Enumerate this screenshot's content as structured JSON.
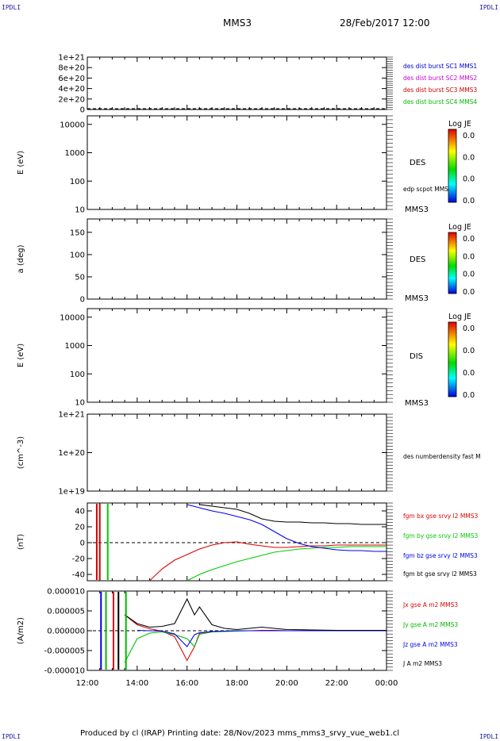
{
  "corners": {
    "tl": "IPDLI",
    "tr": "IPDLI",
    "bl": "IPDLI",
    "br": "IPDLI"
  },
  "header": {
    "title": "MMS3",
    "datetime": "28/Feb/2017 12:00"
  },
  "footer": {
    "text": "Produced by cl (IRAP)   Printing date: 28/Nov/2023   mms_mms3_srvy_vue_web1.cl"
  },
  "chart_data": [
    {
      "type": "line",
      "ytick_labels": [
        "0",
        "2e+20",
        "4e+20",
        "6e+20",
        "8e+20",
        "1e+21"
      ],
      "ylim": [
        0,
        1e+21
      ],
      "series": [
        {
          "name": "des dist burst SC1 MMS1",
          "color": "#0000cc"
        },
        {
          "name": "des dist burst SC2 MMS2",
          "color": "#cc00cc"
        },
        {
          "name": "des dist burst SC3 MMS3",
          "color": "#cc0000"
        },
        {
          "name": "des dist burst SC4 MMS4",
          "color": "#00bb00"
        }
      ]
    },
    {
      "type": "heatmap",
      "ylabel": "E (eV)",
      "yscale": "log",
      "ylim": [
        10,
        20000
      ],
      "ytick_labels": [
        "10",
        "100",
        "1000",
        "10000"
      ],
      "labels": [
        "DES",
        "edp scpot MMS3",
        "MMS3"
      ],
      "colorbar": {
        "title": "Log JE",
        "ticks": [
          "0.0",
          "0.0",
          "0.0",
          "0.0"
        ]
      }
    },
    {
      "type": "heatmap",
      "ylabel": "a (deg)",
      "ylim": [
        0,
        180
      ],
      "ytick_labels": [
        "0",
        "50",
        "100",
        "150"
      ],
      "labels": [
        "DES",
        "MMS3"
      ],
      "colorbar": {
        "title": "Log JE",
        "ticks": [
          "0.0",
          "0.0",
          "0.0",
          "0.0"
        ]
      }
    },
    {
      "type": "heatmap",
      "ylabel": "E (eV)",
      "yscale": "log",
      "ylim": [
        10,
        20000
      ],
      "ytick_labels": [
        "10",
        "100",
        "1000",
        "10000"
      ],
      "labels": [
        "DIS",
        "MMS3"
      ],
      "colorbar": {
        "title": "Log JE",
        "ticks": [
          "0.0",
          "0.0",
          "0.0",
          "0.0"
        ]
      }
    },
    {
      "type": "line",
      "ylabel": "(cm^-3)",
      "yscale": "log",
      "ylim": [
        1e+19,
        1e+21
      ],
      "ytick_labels": [
        "1e+19",
        "1e+20",
        "1e+21"
      ],
      "series": [
        {
          "name": "des numberdensity fast M",
          "color": "#000000"
        }
      ]
    },
    {
      "type": "line",
      "ylabel": "(nT)",
      "ylim": [
        -48,
        50
      ],
      "ytick_labels": [
        "-40",
        "-20",
        "0",
        "20",
        "40"
      ],
      "x": [
        14.5,
        15,
        15.5,
        16,
        16.5,
        17,
        17.5,
        18,
        18.5,
        19,
        19.5,
        20,
        20.5,
        21,
        21.5,
        22,
        22.5,
        23,
        23.5,
        24
      ],
      "series": [
        {
          "name": "fgm bx gse srvy l2 MMS3",
          "color": "#dd0000",
          "values": [
            -48,
            -33,
            -22,
            -15,
            -8,
            -3,
            0,
            1,
            -2,
            -4,
            -6,
            -6,
            -5,
            -4,
            -4,
            -3,
            -3,
            -3,
            -3,
            -3
          ]
        },
        {
          "name": "fgm by gse srvy l2 MMS3",
          "color": "#00cc00",
          "values": [
            null,
            null,
            null,
            -48,
            -40,
            -34,
            -29,
            -24,
            -20,
            -16,
            -12,
            -10,
            -8,
            -7,
            -6,
            -6,
            -5,
            -5,
            -5,
            -5
          ]
        },
        {
          "name": "fgm bz gse srvy l2 MMS3",
          "color": "#0000ee",
          "values": [
            null,
            null,
            null,
            48,
            44,
            40,
            37,
            33,
            29,
            23,
            14,
            5,
            -1,
            -5,
            -7,
            -9,
            -10,
            -10,
            -11,
            -11
          ]
        },
        {
          "name": "fgm bt gse srvy l2 MMS3",
          "color": "#000000",
          "values": [
            null,
            null,
            null,
            null,
            48,
            46,
            44,
            42,
            37,
            30,
            27,
            26,
            26,
            25,
            25,
            24,
            24,
            23,
            23,
            23
          ]
        }
      ]
    },
    {
      "type": "line",
      "ylabel": "(A/m2)",
      "ylim": [
        -1e-05,
        1e-05
      ],
      "ytick_labels": [
        "-0.000010",
        "-0.000005",
        "0.000000",
        "0.000005",
        "0.000010"
      ],
      "x": [
        12,
        12.5,
        13,
        13.5,
        14,
        14.5,
        15,
        15.5,
        16,
        16.3,
        16.5,
        17,
        17.5,
        18,
        18.5,
        19,
        19.5,
        20,
        21,
        22,
        23,
        24
      ],
      "series": [
        {
          "name": "Jx gse A m2 MMS3",
          "color": "#dd0000",
          "values": [
            null,
            null,
            null,
            4e-06,
            1.5e-06,
            5e-07,
            -1e-07,
            -1.5e-06,
            -7.5e-06,
            -4e-06,
            -6e-07,
            -2e-07,
            -1e-07,
            0,
            0,
            1e-07,
            1e-07,
            0,
            0,
            0,
            0,
            0
          ]
        },
        {
          "name": "Jy gse A m2 MMS3",
          "color": "#00bb00",
          "values": [
            null,
            null,
            null,
            -8e-06,
            -2e-06,
            -6e-07,
            -3e-07,
            -1e-06,
            -2e-06,
            -4e-06,
            -9e-07,
            -3e-07,
            -2e-07,
            -1e-07,
            0,
            0,
            0,
            0,
            0,
            0,
            0,
            0
          ]
        },
        {
          "name": "Jz gse A m2 MMS3",
          "color": "#0000ee",
          "values": [
            null,
            null,
            null,
            null,
            1e-07,
            0,
            -1e-07,
            -8e-07,
            -4e-06,
            -1e-06,
            -5e-07,
            -2e-07,
            -1e-07,
            0,
            0,
            0,
            0,
            0,
            0,
            0,
            0,
            0
          ]
        },
        {
          "name": "J A m2 MMS3",
          "color": "#000000",
          "values": [
            null,
            null,
            null,
            4e-06,
            1.8e-06,
            9e-07,
            1.1e-06,
            1.8e-06,
            8e-06,
            4e-06,
            6e-06,
            1.5e-06,
            6e-07,
            3e-07,
            6e-07,
            9e-07,
            6e-07,
            3e-07,
            2e-07,
            1e-07,
            1e-07,
            1e-07
          ]
        }
      ]
    }
  ],
  "xaxis": {
    "tick_labels": [
      "12:00",
      "14:00",
      "16:00",
      "18:00",
      "20:00",
      "22:00",
      "00:00"
    ],
    "xlim": [
      12,
      24
    ]
  }
}
